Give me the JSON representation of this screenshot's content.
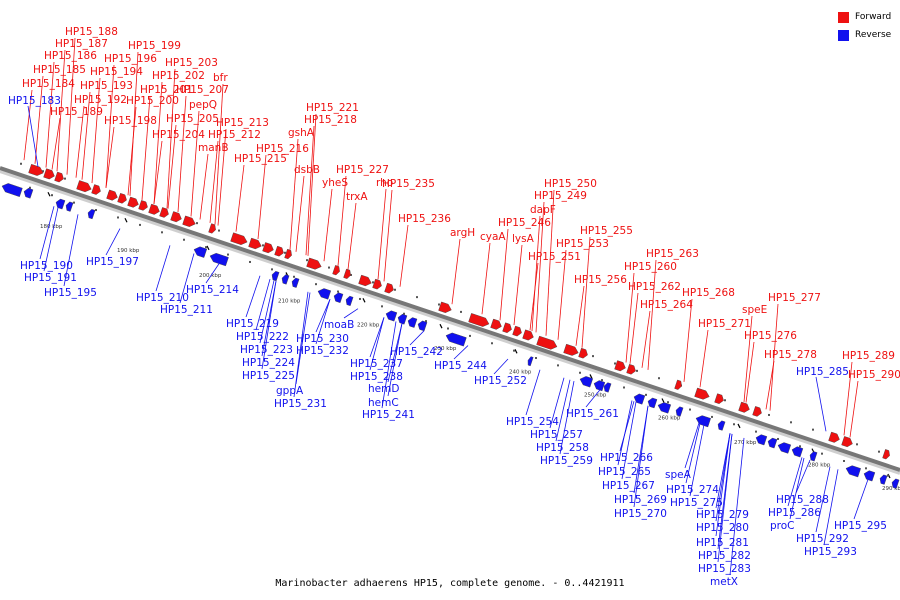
{
  "caption": "Marinobacter adhaerens HP15, complete genome. - 0..4421911",
  "legend": [
    {
      "label": "Forward",
      "color": "#ee1111"
    },
    {
      "label": "Reverse",
      "color": "#1111ee"
    }
  ],
  "colors": {
    "forward": "#ee1111",
    "reverse": "#1111ee",
    "backbone": "#777777"
  },
  "ticks": [
    "180 kbp",
    "190 kbp",
    "200 kbp",
    "210 kbp",
    "220 kbp",
    "230 kbp",
    "240 kbp",
    "250 kbp",
    "260 kbp",
    "270 kbp",
    "280 kbp",
    "290 kbp"
  ],
  "forward_labels": [
    "HP15_188",
    "HP15_187",
    "HP15_186",
    "HP15_185",
    "HP15_184",
    "HP15_199",
    "HP15_196",
    "HP15_194",
    "HP15_193",
    "HP15_192",
    "HP15_189",
    "HP15_203",
    "HP15_202",
    "HP15_201",
    "HP15_200",
    "HP15_198",
    "HP15_207",
    "HP15_205",
    "HP15_204",
    "bfr",
    "pepQ",
    "HP15_213",
    "HP15_212",
    "manB",
    "HP15_216",
    "HP15_215",
    "HP15_221",
    "HP15_218",
    "gshA",
    "dsbB",
    "HP15_227",
    "yheS",
    "trxA",
    "rho",
    "HP15_235",
    "HP15_236",
    "argH",
    "cyaA",
    "HP15_250",
    "HP15_249",
    "dapF",
    "HP15_246",
    "lysA",
    "HP15_255",
    "HP15_253",
    "HP15_251",
    "HP15_256",
    "HP15_263",
    "HP15_260",
    "HP15_262",
    "HP15_264",
    "HP15_268",
    "HP15_271",
    "HP15_277",
    "speE",
    "HP15_276",
    "HP15_278",
    "HP15_289",
    "HP15_290"
  ],
  "reverse_labels": [
    "HP15_183",
    "HP15_190",
    "HP15_191",
    "HP15_195",
    "HP15_197",
    "HP15_210",
    "HP15_214",
    "HP15_211",
    "HP15_219",
    "HP15_222",
    "HP15_223",
    "HP15_224",
    "HP15_225",
    "moaB",
    "HP15_230",
    "HP15_232",
    "gppA",
    "HP15_231",
    "HP15_237",
    "HP15_238",
    "HP15_242",
    "hemD",
    "hemC",
    "HP15_241",
    "HP15_244",
    "HP15_252",
    "HP15_254",
    "HP15_257",
    "HP15_258",
    "HP15_259",
    "HP15_261",
    "HP15_266",
    "HP15_265",
    "HP15_267",
    "HP15_269",
    "HP15_270",
    "speA",
    "HP15_274",
    "HP15_275",
    "HP15_279",
    "HP15_280",
    "HP15_281",
    "HP15_282",
    "HP15_283",
    "metX",
    "HP15_285",
    "HP15_288",
    "HP15_286",
    "proC",
    "HP15_292",
    "HP15_293",
    "HP15_295"
  ]
}
